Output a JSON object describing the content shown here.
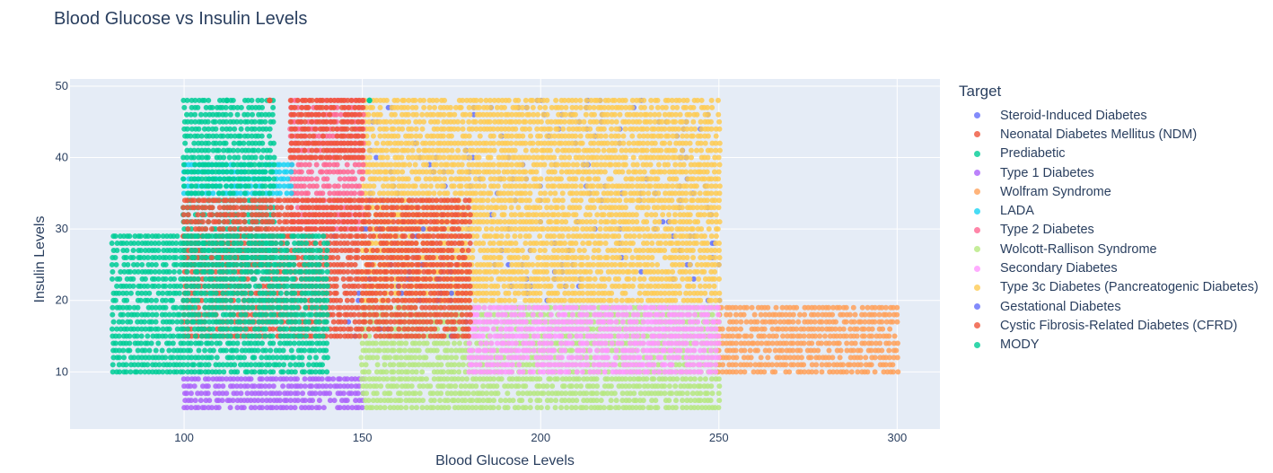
{
  "chart_data": {
    "type": "scatter",
    "title": "Blood Glucose vs Insulin Levels",
    "xlabel": "Blood Glucose Levels",
    "ylabel": "Insulin Levels",
    "xlim": [
      68,
      312
    ],
    "ylim": [
      2,
      51
    ],
    "xticks": [
      100,
      150,
      200,
      250,
      300
    ],
    "yticks": [
      10,
      20,
      30,
      40,
      50
    ],
    "grid": true,
    "legend_title": "Target",
    "legend_position": "right",
    "series": [
      {
        "name": "Steroid-Induced Diabetes",
        "color": "#636efa",
        "x_range": [
          150,
          250
        ],
        "y_range": [
          20,
          48
        ]
      },
      {
        "name": "Neonatal Diabetes Mellitus (NDM)",
        "color": "#EF553B",
        "x_range": [
          130,
          150
        ],
        "y_range": [
          40,
          48
        ]
      },
      {
        "name": "Prediabetic",
        "color": "#00cc96",
        "x_range": [
          100,
          125
        ],
        "y_range": [
          25,
          48
        ]
      },
      {
        "name": "Type 1 Diabetes",
        "color": "#ab63fa",
        "x_range": [
          100,
          150
        ],
        "y_range": [
          5,
          9
        ]
      },
      {
        "name": "Wolfram Syndrome",
        "color": "#FFA15A",
        "x_range": [
          250,
          300
        ],
        "y_range": [
          10,
          19
        ]
      },
      {
        "name": "LADA",
        "color": "#19d3f3",
        "x_range": [
          100,
          130
        ],
        "y_range": [
          35,
          39
        ]
      },
      {
        "name": "Type 2 Diabetes",
        "color": "#FF6692",
        "x_range": [
          130,
          150
        ],
        "y_range": [
          30,
          48
        ]
      },
      {
        "name": "Wolcott-Rallison Syndrome",
        "color": "#B6E880",
        "x_range": [
          150,
          250
        ],
        "y_range": [
          5,
          19
        ]
      },
      {
        "name": "Secondary Diabetes",
        "color": "#FF97FF",
        "x_range": [
          180,
          250
        ],
        "y_range": [
          10,
          19
        ]
      },
      {
        "name": "Type 3c Diabetes (Pancreatogenic Diabetes)",
        "color": "#FECB52",
        "x_range": [
          150,
          250
        ],
        "y_range": [
          20,
          48
        ]
      },
      {
        "name": "Gestational Diabetes",
        "color": "#636efa",
        "x_range": [
          140,
          180
        ],
        "y_range": [
          15,
          30
        ]
      },
      {
        "name": "Cystic Fibrosis-Related Diabetes (CFRD)",
        "color": "#EF553B",
        "x_range": [
          100,
          180
        ],
        "y_range": [
          15,
          34
        ]
      },
      {
        "name": "MODY",
        "color": "#00cc96",
        "x_range": [
          80,
          140
        ],
        "y_range": [
          10,
          29
        ]
      }
    ],
    "outlier_points": [
      {
        "series": "Prediabetic",
        "x": 112,
        "y": 48
      },
      {
        "series": "Neonatal Diabetes Mellitus (NDM)",
        "x": 124,
        "y": 48
      },
      {
        "series": "Prediabetic",
        "x": 152,
        "y": 48
      }
    ]
  }
}
